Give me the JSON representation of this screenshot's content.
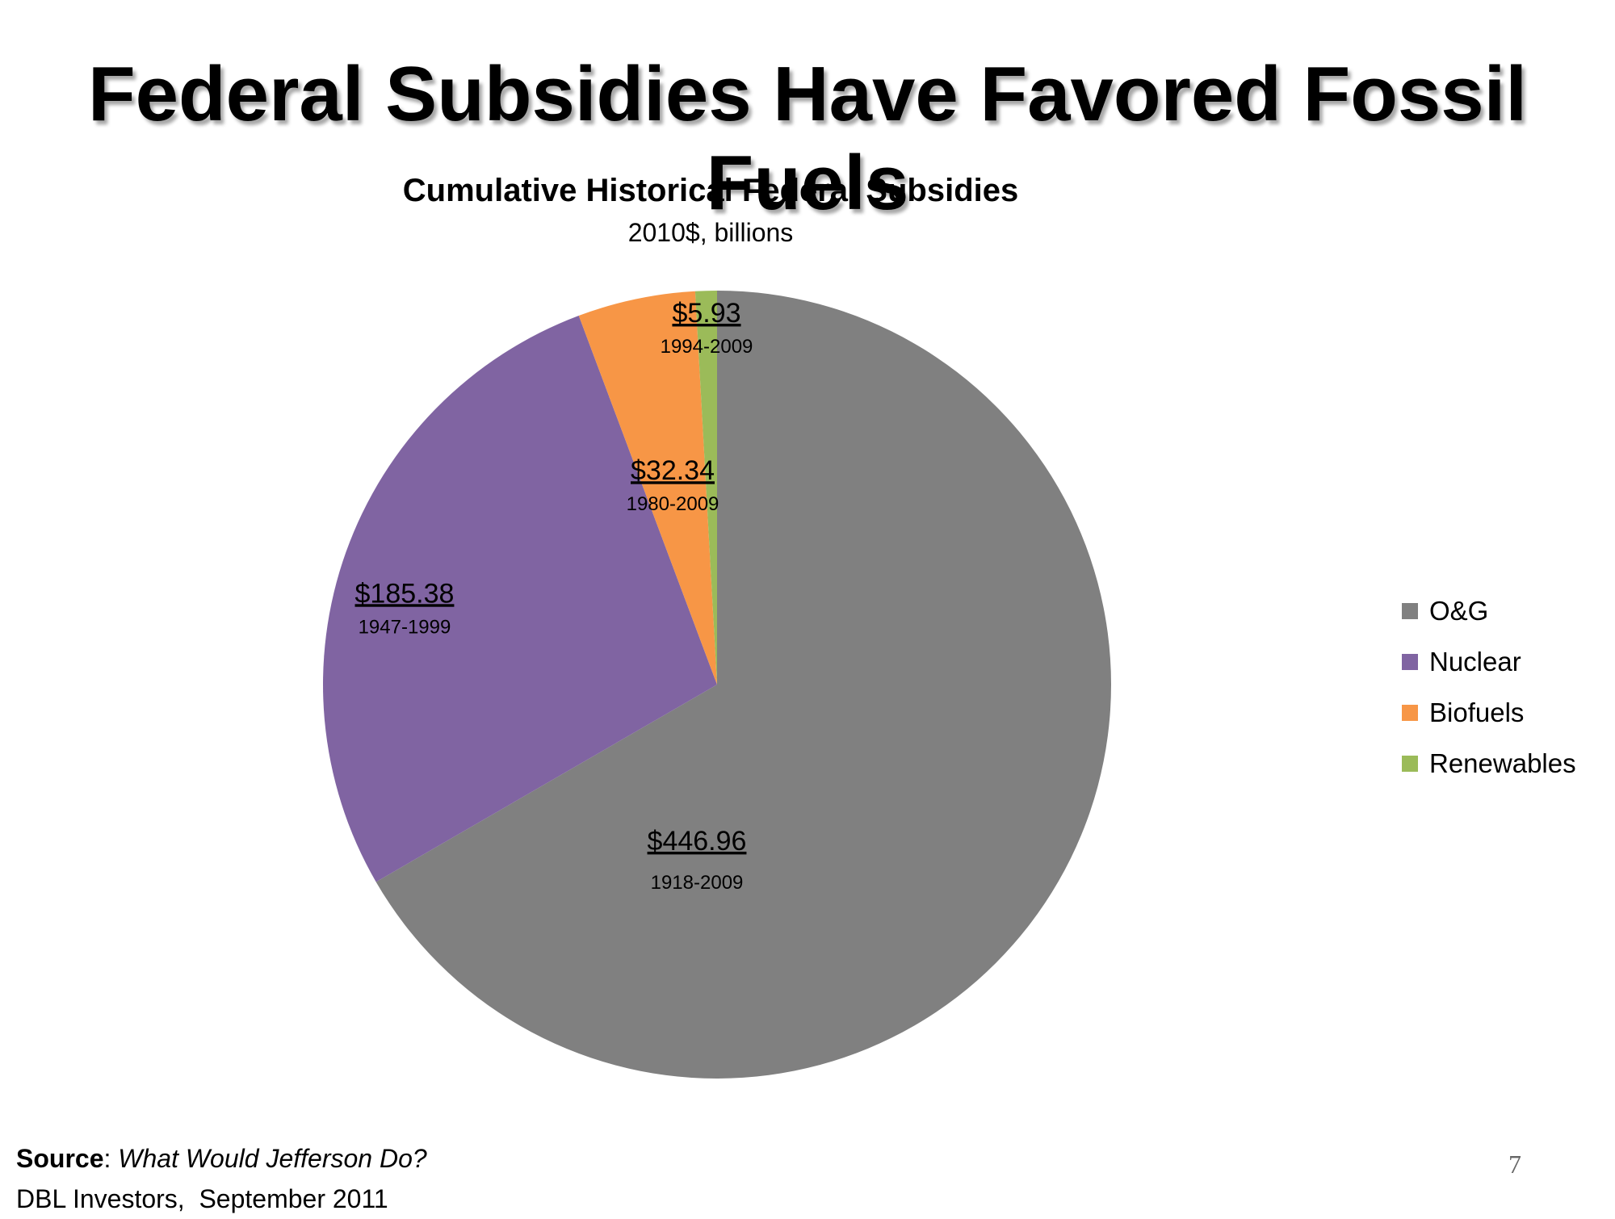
{
  "slide": {
    "title": "Federal Subsidies Have Favored Fossil Fuels",
    "page_number": "7"
  },
  "source": {
    "label": "Source",
    "separator": ":",
    "title": "What Would Jefferson Do?",
    "publisher_line": "DBL Investors,  September 2011"
  },
  "chart_data": {
    "type": "pie",
    "title": "Cumulative Historical Federal Subsidies",
    "subtitle": "2010$, billions",
    "legend_position": "right",
    "slices": [
      {
        "name": "O&G",
        "value": 446.96,
        "label": "$446.96",
        "period": "1918-2009",
        "color": "#808080"
      },
      {
        "name": "Nuclear",
        "value": 185.38,
        "label": "$185.38",
        "period": "1947-1999",
        "color": "#8064A2"
      },
      {
        "name": "Biofuels",
        "value": 32.34,
        "label": "$32.34",
        "period": "1980-2009",
        "color": "#F79646"
      },
      {
        "name": "Renewables",
        "value": 5.93,
        "label": "$5.93",
        "period": "1994-2009",
        "color": "#9BBB59"
      }
    ]
  }
}
